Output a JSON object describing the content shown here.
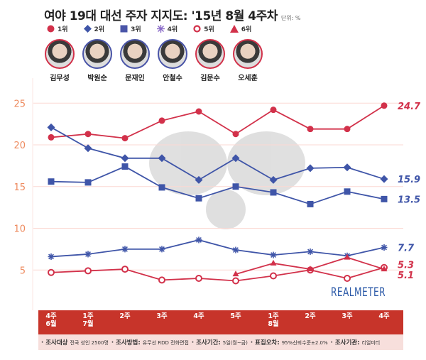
{
  "header": {
    "title": "여야 19대 대선 주자 지지도: '15년 8월 4주차",
    "unit": "단위: %"
  },
  "legend": [
    {
      "label": "1위",
      "marker": "filled-circle",
      "color": "#d2314a"
    },
    {
      "label": "2위",
      "marker": "diamond",
      "color": "#3f55a8"
    },
    {
      "label": "3위",
      "marker": "square",
      "color": "#3f55a8"
    },
    {
      "label": "4위",
      "marker": "asterisk",
      "color": "#8a6bc8"
    },
    {
      "label": "5위",
      "marker": "open-circle",
      "color": "#d2314a"
    },
    {
      "label": "6위",
      "marker": "triangle",
      "color": "#d2314a"
    }
  ],
  "candidates": [
    {
      "name": "김무성",
      "ring": "#d2314a"
    },
    {
      "name": "박원순",
      "ring": "#4a55a8"
    },
    {
      "name": "문재인",
      "ring": "#4a55a8"
    },
    {
      "name": "안철수",
      "ring": "#4a55a8"
    },
    {
      "name": "김문수",
      "ring": "#d2314a"
    },
    {
      "name": "오세훈",
      "ring": "#d2314a"
    }
  ],
  "x_labels": [
    {
      "top": "4주",
      "bottom": "6월"
    },
    {
      "top": "1주",
      "bottom": "7월"
    },
    {
      "top": "2주",
      "bottom": ""
    },
    {
      "top": "3주",
      "bottom": ""
    },
    {
      "top": "4주",
      "bottom": ""
    },
    {
      "top": "5주",
      "bottom": ""
    },
    {
      "top": "1주",
      "bottom": "8월"
    },
    {
      "top": "2주",
      "bottom": ""
    },
    {
      "top": "3주",
      "bottom": ""
    },
    {
      "top": "4주",
      "bottom": ""
    }
  ],
  "notes": [
    {
      "key": "· 조사대상",
      "value": "전국 성인 2500명"
    },
    {
      "key": "· 조사방법:",
      "value": "유무선 RDD 전화면접"
    },
    {
      "key": "· 조사기간:",
      "value": "5일(월~금)"
    },
    {
      "key": "· 표집오차:",
      "value": "95%신뢰수준±2.0%"
    },
    {
      "key": "· 조사기관:",
      "value": "리얼미터"
    }
  ],
  "brand": "REALMETER",
  "chart_data": {
    "type": "line",
    "title": "여야 19대 대선 주자 지지도: '15년 8월 4주차",
    "unit": "%",
    "x": [
      "6월 4주",
      "7월 1주",
      "7월 2주",
      "7월 3주",
      "7월 4주",
      "7월 5주",
      "8월 1주",
      "8월 2주",
      "8월 3주",
      "8월 4주"
    ],
    "yticks": [
      5,
      10,
      15,
      20,
      25
    ],
    "ylim": [
      2.5,
      27
    ],
    "grid": true,
    "legend_position": "top",
    "series": [
      {
        "name": "1위 (김무성)",
        "marker": "filled-circle",
        "color": "#d2314a",
        "values": [
          20.9,
          21.3,
          20.8,
          22.9,
          24.0,
          21.3,
          24.2,
          21.9,
          21.9,
          24.7
        ],
        "end_label": "24.7"
      },
      {
        "name": "2위 (박원순)",
        "marker": "diamond",
        "color": "#3f55a8",
        "values": [
          22.1,
          19.6,
          18.4,
          18.4,
          15.8,
          18.4,
          15.8,
          17.2,
          17.3,
          15.9
        ],
        "end_label": "15.9"
      },
      {
        "name": "3위 (문재인)",
        "marker": "square",
        "color": "#3f55a8",
        "values": [
          15.6,
          15.5,
          17.4,
          14.9,
          13.6,
          15.0,
          14.3,
          12.9,
          14.4,
          13.5
        ],
        "end_label": "13.5"
      },
      {
        "name": "4위 (안철수)",
        "marker": "asterisk",
        "color": "#3f55a8",
        "values": [
          6.6,
          6.9,
          7.5,
          7.5,
          8.6,
          7.4,
          6.8,
          7.2,
          6.7,
          7.7
        ],
        "end_label": "7.7"
      },
      {
        "name": "5위 (김문수)",
        "marker": "open-circle",
        "color": "#d2314a",
        "values": [
          4.7,
          4.9,
          5.1,
          3.8,
          4.0,
          3.7,
          4.3,
          5.0,
          4.0,
          5.3
        ],
        "end_label": "5.3"
      },
      {
        "name": "6위 (오세훈)",
        "marker": "triangle",
        "color": "#d2314a",
        "values": [
          null,
          null,
          null,
          null,
          null,
          4.5,
          5.8,
          5.1,
          6.5,
          5.1
        ],
        "end_label": "5.1"
      }
    ]
  }
}
